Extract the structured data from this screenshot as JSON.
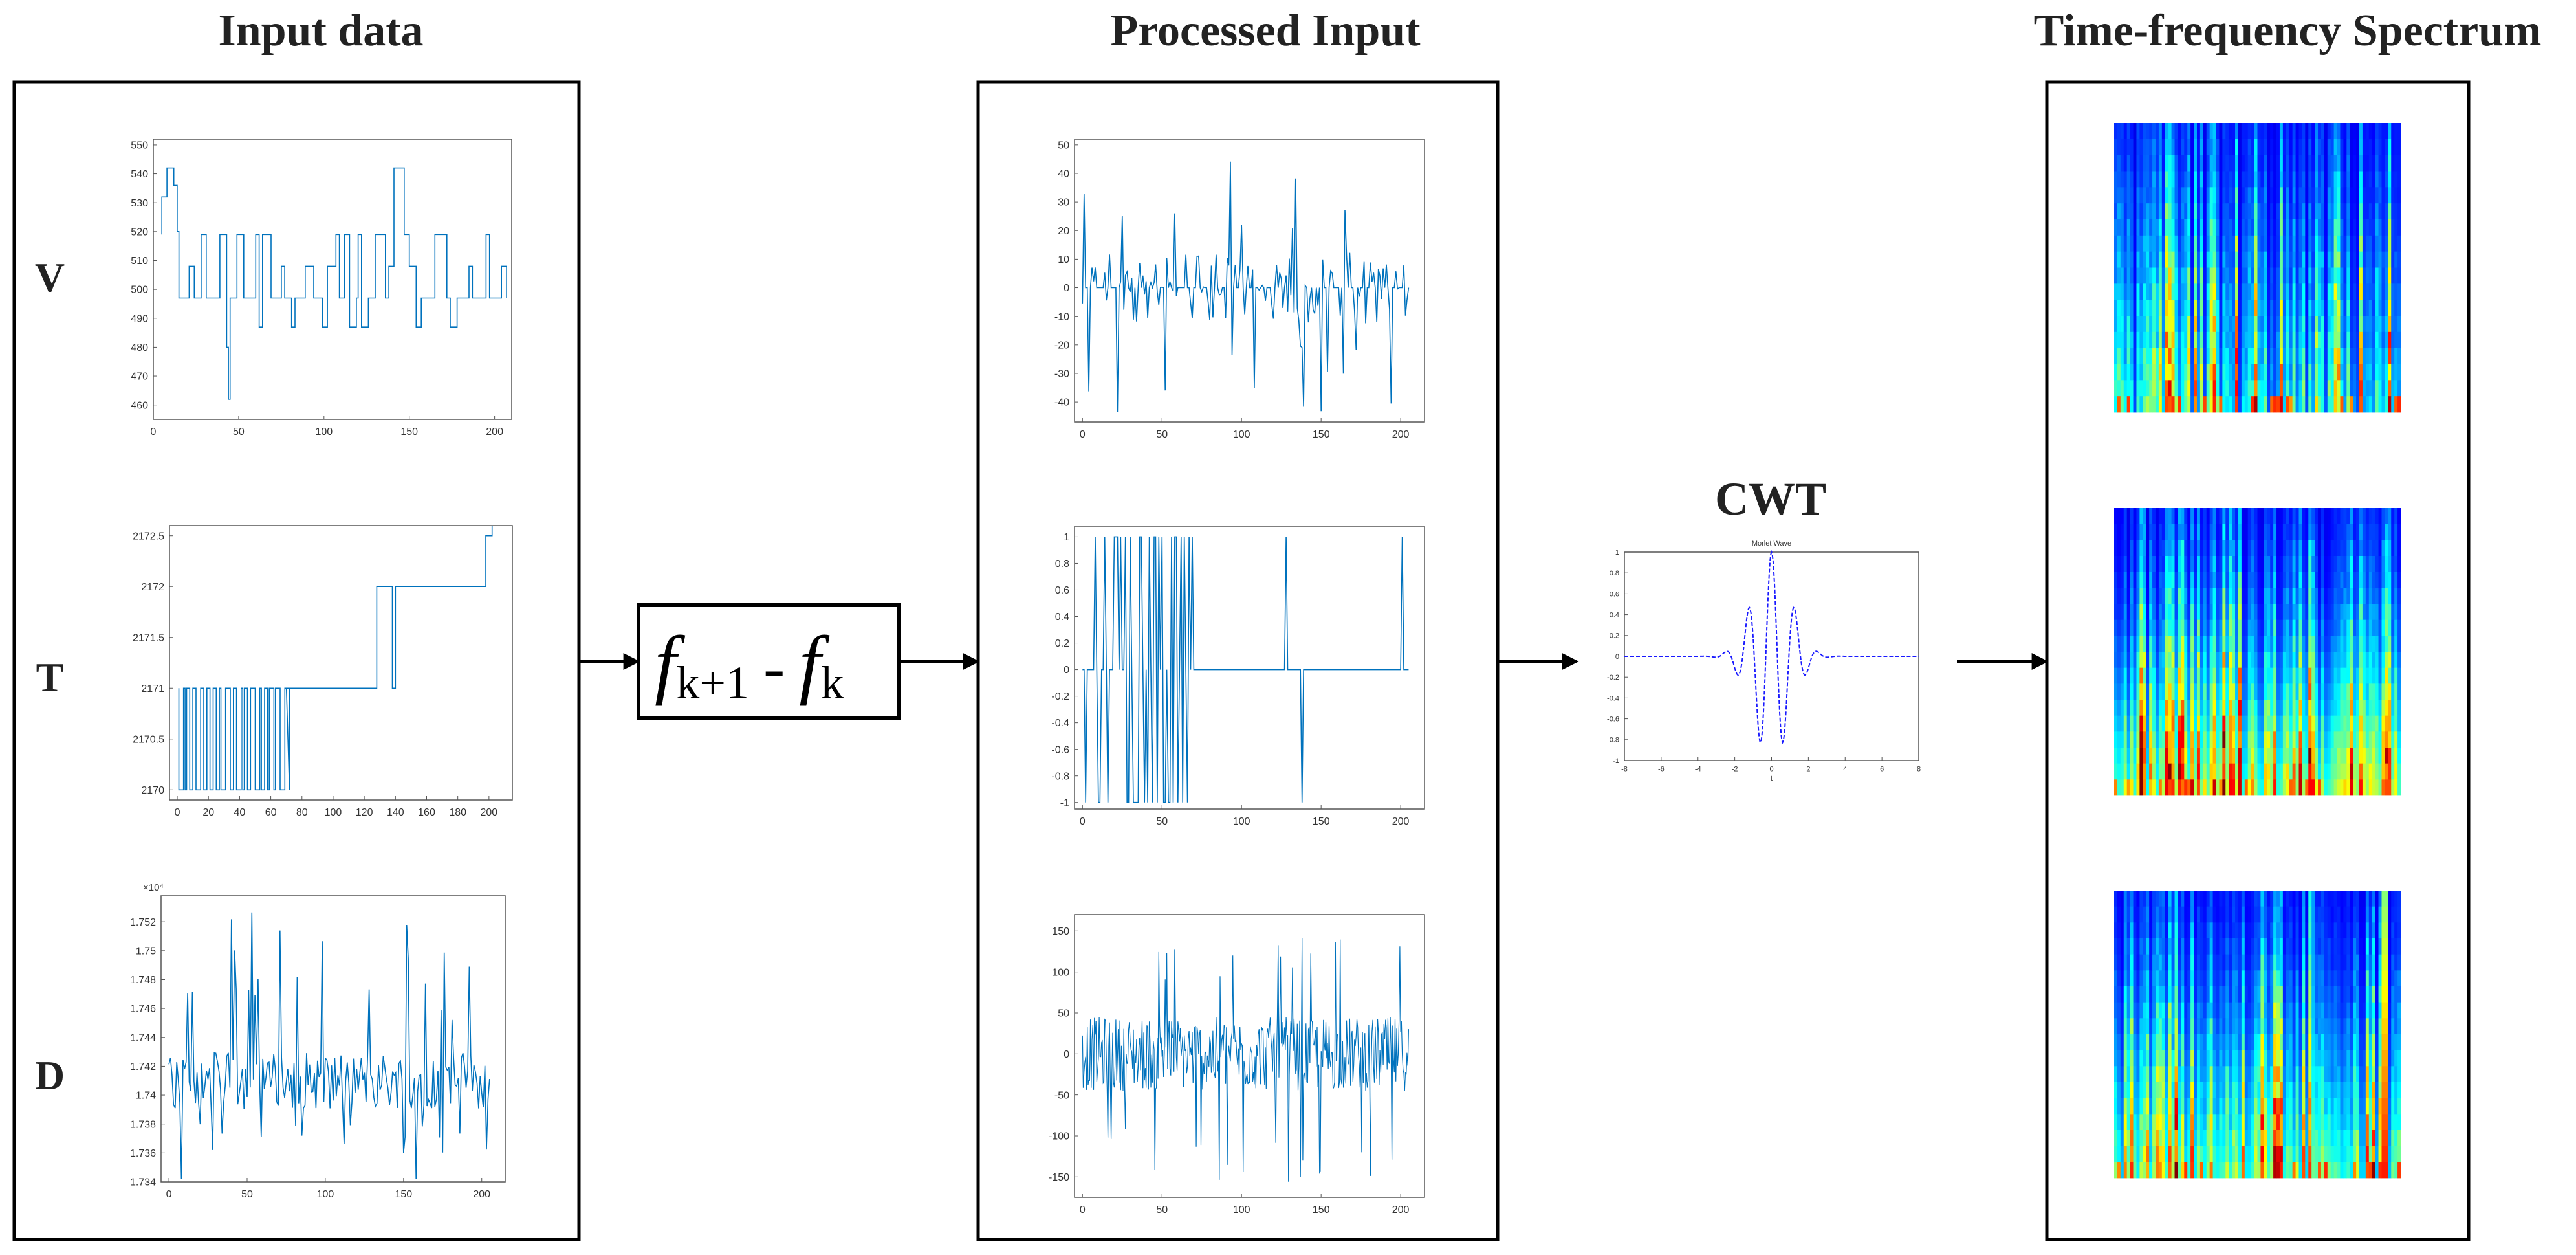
{
  "headings": {
    "input": "Input data",
    "processed": "Processed Input",
    "spectrum": "Time-frequency Spectrum",
    "cwt": "CWT"
  },
  "row_labels": [
    "V",
    "T",
    "D"
  ],
  "formula": {
    "f1": "f",
    "sub1": "k+1",
    "op": "-",
    "f2": "f",
    "sub2": "k"
  },
  "colors": {
    "line": "#0072BD",
    "wavelet": "#1a1aff",
    "border": "#000000",
    "axis": "#333333"
  },
  "chart_data": [
    {
      "type": "line",
      "panel": "input-V",
      "xticks": [
        "0",
        "50",
        "100",
        "150",
        "200"
      ],
      "xlim": [
        0,
        210
      ],
      "yticks": [
        "460",
        "470",
        "480",
        "490",
        "500",
        "510",
        "520",
        "530",
        "540",
        "550"
      ],
      "ylim": [
        455,
        552
      ]
    },
    {
      "type": "line",
      "panel": "input-T",
      "xticks": [
        "0",
        "20",
        "40",
        "60",
        "80",
        "100",
        "120",
        "140",
        "160",
        "180",
        "200"
      ],
      "xlim": [
        -5,
        215
      ],
      "yticks": [
        "2170",
        "2170.5",
        "2171",
        "2171.5",
        "2172",
        "2172.5"
      ],
      "ylim": [
        2169.9,
        2172.6
      ]
    },
    {
      "type": "line",
      "panel": "input-D",
      "exponent": "×10⁴",
      "xticks": [
        "0",
        "50",
        "100",
        "150",
        "200"
      ],
      "xlim": [
        -5,
        215
      ],
      "yticks": [
        "1.734",
        "1.736",
        "1.738",
        "1.74",
        "1.742",
        "1.744",
        "1.746",
        "1.748",
        "1.75",
        "1.752"
      ],
      "ylim": [
        1.734,
        1.7538
      ]
    },
    {
      "type": "line",
      "panel": "processed-V",
      "xticks": [
        "0",
        "50",
        "100",
        "150",
        "200"
      ],
      "xlim": [
        -5,
        215
      ],
      "yticks": [
        "-40",
        "-30",
        "-20",
        "-10",
        "0",
        "10",
        "20",
        "30",
        "40",
        "50"
      ],
      "ylim": [
        -47,
        52
      ]
    },
    {
      "type": "line",
      "panel": "processed-T",
      "xticks": [
        "0",
        "50",
        "100",
        "150",
        "200"
      ],
      "xlim": [
        -5,
        215
      ],
      "yticks": [
        "-1",
        "-0.8",
        "-0.6",
        "-0.4",
        "-0.2",
        "0",
        "0.2",
        "0.4",
        "0.6",
        "0.8",
        "1"
      ],
      "ylim": [
        -1.05,
        1.08
      ]
    },
    {
      "type": "line",
      "panel": "processed-D",
      "xticks": [
        "0",
        "50",
        "100",
        "150",
        "200"
      ],
      "xlim": [
        -5,
        215
      ],
      "yticks": [
        "-150",
        "-100",
        "-50",
        "0",
        "50",
        "100",
        "150"
      ],
      "ylim": [
        -175,
        170
      ]
    },
    {
      "type": "line",
      "panel": "morlet",
      "title": "Morlet Wave",
      "xlabel": "t",
      "xticks": [
        "-8",
        "-6",
        "-4",
        "-2",
        "0",
        "2",
        "4",
        "6",
        "8"
      ],
      "xlim": [
        -8,
        8
      ],
      "yticks": [
        "-1",
        "-0.8",
        "-0.6",
        "-0.4",
        "-0.2",
        "0",
        "0.2",
        "0.4",
        "0.6",
        "0.8",
        "1"
      ],
      "ylim": [
        -1,
        1
      ]
    },
    {
      "type": "heatmap",
      "panel": "spectrum-V"
    },
    {
      "type": "heatmap",
      "panel": "spectrum-T"
    },
    {
      "type": "heatmap",
      "panel": "spectrum-D"
    }
  ]
}
